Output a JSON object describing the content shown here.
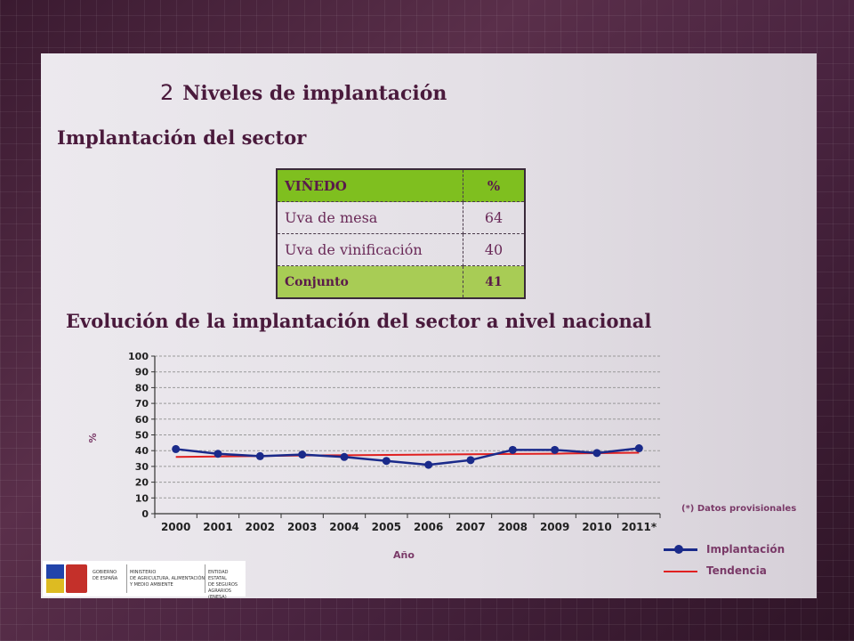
{
  "section": {
    "number": "2",
    "title": "Niveles de implantación"
  },
  "subtitle": "Implantación del sector",
  "table": {
    "header": [
      "VIÑEDO",
      "%"
    ],
    "rows": [
      [
        "Uva de mesa",
        "64"
      ],
      [
        "Uva de vinificación",
        "40"
      ]
    ],
    "footer": [
      "Conjunto",
      "41"
    ]
  },
  "chart_title": "Evolución de la implantación del sector a nivel nacional",
  "chart_data": {
    "type": "line",
    "categories": [
      "2000",
      "2001",
      "2002",
      "2003",
      "2004",
      "2005",
      "2006",
      "2007",
      "2008",
      "2009",
      "2010",
      "2011*"
    ],
    "series": [
      {
        "name": "Implantación",
        "values": [
          41,
          38,
          36.5,
          37.5,
          36,
          33.5,
          31,
          34,
          40.5,
          40.5,
          38.5,
          41.5
        ],
        "color": "#1a2a8a"
      },
      {
        "name": "Tendencia",
        "values": [
          36,
          36.3,
          36.6,
          36.9,
          37.1,
          37.3,
          37.5,
          37.7,
          37.9,
          38.1,
          38.4,
          38.7
        ],
        "color": "#e02020"
      }
    ],
    "xlabel": "Año",
    "ylabel": "%",
    "ylim": [
      0,
      100
    ],
    "yticks": [
      0,
      10,
      20,
      30,
      40,
      50,
      60,
      70,
      80,
      90,
      100
    ],
    "grid": true,
    "legend": "bottom-right"
  },
  "note": "(*) Datos provisionales",
  "logo": {
    "col1": [
      "GOBIERNO",
      "DE ESPAÑA"
    ],
    "col2": [
      "MINISTERIO",
      "DE AGRICULTURA, ALIMENTACIÓN",
      "Y MEDIO AMBIENTE"
    ],
    "col3": [
      "ENTIDAD ESTATAL",
      "DE SEGUROS",
      "AGRARIOS (ENESA)"
    ]
  }
}
